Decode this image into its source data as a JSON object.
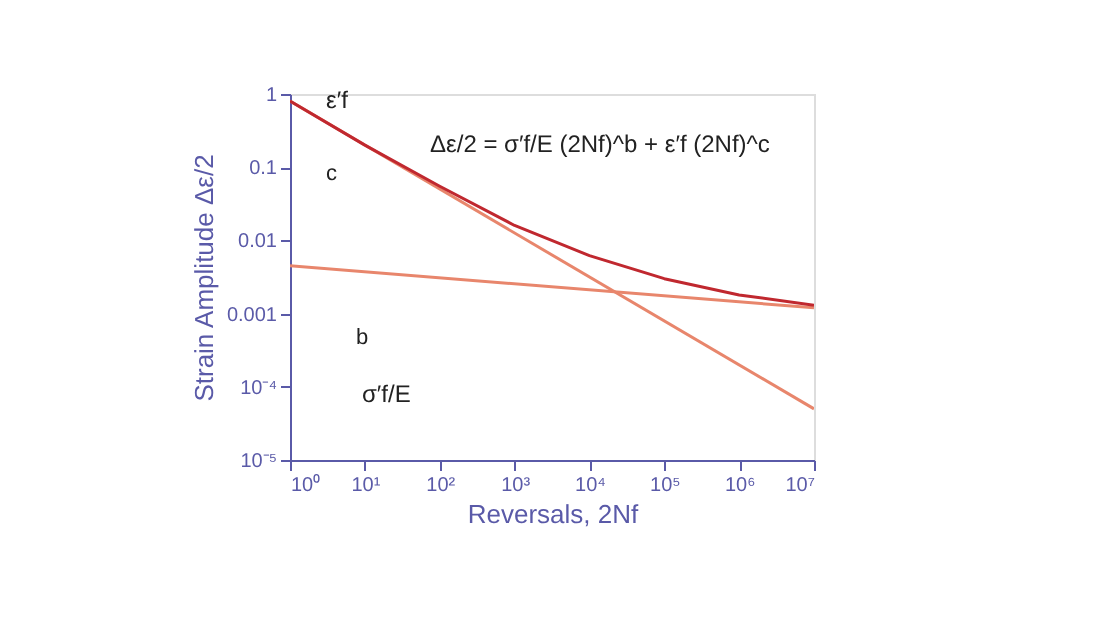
{
  "chart_data": {
    "type": "line",
    "xlabel": "Reversals, 2Nf",
    "ylabel": "Strain Amplitude Δε/2",
    "log": "xy",
    "grid": false,
    "legend": false,
    "marker": "none",
    "line_style": "solid",
    "xlim": [
      1,
      10000000
    ],
    "ylim": [
      1e-05,
      1
    ],
    "xticks": [
      {
        "value": 1,
        "label": "10⁰"
      },
      {
        "value": 10,
        "label": "10¹"
      },
      {
        "value": 100,
        "label": "10²"
      },
      {
        "value": 1000,
        "label": "10³"
      },
      {
        "value": 10000,
        "label": "10⁴"
      },
      {
        "value": 100000,
        "label": "10⁵"
      },
      {
        "value": 1000000,
        "label": "10⁶"
      },
      {
        "value": 10000000,
        "label": "10⁷"
      }
    ],
    "yticks": [
      {
        "value": 1e-05,
        "label": "10⁻⁵"
      },
      {
        "value": 0.0001,
        "label": "10⁻⁴"
      },
      0.001,
      0.01,
      0.1,
      1
    ],
    "series": [
      {
        "color": "#e8866c",
        "x": [
          1,
          10000000
        ],
        "values": [
          0.8,
          5e-05
        ]
      },
      {
        "color": "#e8866c",
        "x": [
          1,
          10000000
        ],
        "values": [
          0.0045,
          0.0012
        ]
      },
      {
        "color": "#c0282f",
        "x": [
          1,
          10,
          100,
          1000,
          10000,
          100000,
          1000000,
          10000000
        ],
        "values": [
          0.8,
          0.2,
          0.055,
          0.016,
          0.0062,
          0.003,
          0.0018,
          0.0013
        ]
      }
    ],
    "annotations": [
      "Δε/2 = σ′f/E (2Nf)^b + ε′f (2Nf)^c",
      "ε′f",
      "c",
      "b",
      "σ′f/E"
    ]
  }
}
